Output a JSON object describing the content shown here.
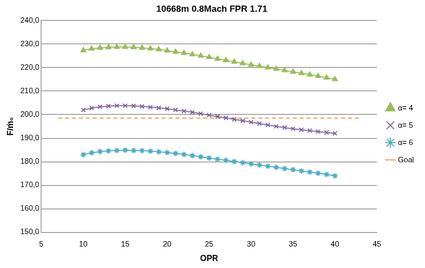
{
  "chart_data": {
    "type": "line",
    "title": "10668m 0.8Mach FPR 1.71",
    "x_label": "OPR",
    "y_label": "F/ṁ₀",
    "x": [
      10,
      11,
      12,
      13,
      14,
      15,
      16,
      17,
      18,
      19,
      20,
      21,
      22,
      23,
      24,
      25,
      26,
      27,
      28,
      29,
      30,
      31,
      32,
      33,
      34,
      35,
      36,
      37,
      38,
      39,
      40
    ],
    "series": [
      {
        "name": "α= 4",
        "color": "#9bbb59",
        "marker": "triangle",
        "line_style": "solid",
        "values": [
          227.3,
          228.0,
          228.4,
          228.6,
          228.7,
          228.7,
          228.6,
          228.4,
          228.1,
          227.7,
          227.2,
          226.7,
          226.2,
          225.6,
          225.0,
          224.4,
          223.7,
          223.1,
          222.4,
          221.8,
          221.2,
          220.6,
          220.0,
          219.4,
          218.8,
          218.2,
          217.6,
          217.0,
          216.4,
          215.7,
          215.0
        ]
      },
      {
        "name": "α= 5",
        "color": "#8064a2",
        "marker": "x",
        "line_style": "solid",
        "values": [
          202.0,
          202.8,
          203.3,
          203.6,
          203.8,
          203.8,
          203.7,
          203.5,
          203.2,
          202.9,
          202.5,
          202.0,
          201.5,
          201.0,
          200.4,
          199.8,
          199.2,
          198.6,
          198.0,
          197.4,
          196.8,
          196.2,
          195.6,
          195.0,
          194.5,
          194.0,
          193.6,
          193.2,
          192.8,
          192.4,
          192.0
        ]
      },
      {
        "name": "α= 6",
        "color": "#4bacc6",
        "marker": "star",
        "line_style": "solid",
        "values": [
          183.0,
          183.8,
          184.3,
          184.6,
          184.8,
          184.9,
          184.8,
          184.7,
          184.5,
          184.2,
          183.9,
          183.5,
          183.1,
          182.6,
          182.1,
          181.6,
          181.1,
          180.6,
          180.1,
          179.6,
          179.1,
          178.6,
          178.1,
          177.6,
          177.1,
          176.6,
          176.1,
          175.6,
          175.1,
          174.6,
          174.0
        ]
      },
      {
        "name": "Goal",
        "color": "#f79646",
        "marker": "none",
        "line_style": "dashed",
        "x": [
          7,
          43
        ],
        "values": [
          198.5,
          198.5
        ]
      }
    ],
    "xlim": [
      5,
      45
    ],
    "xticks": [
      5,
      10,
      15,
      20,
      25,
      30,
      35,
      40,
      45
    ],
    "ylim": [
      150,
      240
    ],
    "yticks": [
      {
        "value": 150,
        "label": "150,0"
      },
      {
        "value": 160,
        "label": "160,0"
      },
      {
        "value": 170,
        "label": "170,0"
      },
      {
        "value": 180,
        "label": "180,0"
      },
      {
        "value": 190,
        "label": "190,0"
      },
      {
        "value": 200,
        "label": "200,0"
      },
      {
        "value": 210,
        "label": "210,0"
      },
      {
        "value": 220,
        "label": "220,0"
      },
      {
        "value": 230,
        "label": "230,0"
      },
      {
        "value": 240,
        "label": "240,0"
      }
    ],
    "grid": true,
    "legend": "right"
  }
}
